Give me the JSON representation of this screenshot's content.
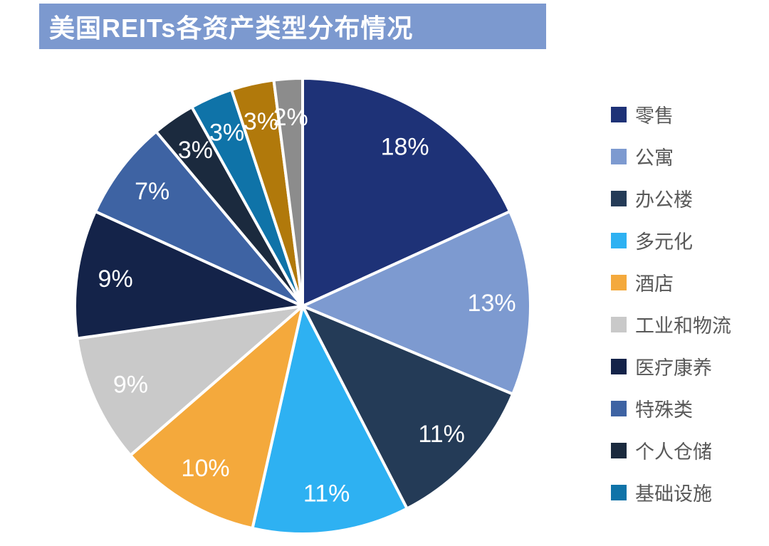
{
  "title": "美国REITs各资产类型分布情况",
  "title_banner_color": "#7C99CF",
  "legend_text_color": "#595959",
  "chart_data": {
    "type": "pie",
    "title": "美国REITs各资产类型分布情况",
    "legend_position": "right",
    "start_angle": "12-o-clock, clockwise",
    "slices": [
      {
        "label": "零售",
        "value": 18,
        "percent_label": "18%",
        "color": "#1E3277"
      },
      {
        "label": "公寓",
        "value": 13,
        "percent_label": "13%",
        "color": "#7D9AD0"
      },
      {
        "label": "办公楼",
        "value": 11,
        "percent_label": "11%",
        "color": "#243B57"
      },
      {
        "label": "多元化",
        "value": 11,
        "percent_label": "11%",
        "color": "#2EB1F2"
      },
      {
        "label": "酒店",
        "value": 10,
        "percent_label": "10%",
        "color": "#F4A93C"
      },
      {
        "label": "工业和物流",
        "value": 9,
        "percent_label": "9%",
        "color": "#C9C9C9"
      },
      {
        "label": "医疗康养",
        "value": 9,
        "percent_label": "9%",
        "color": "#142349"
      },
      {
        "label": "特殊类",
        "value": 7,
        "percent_label": "7%",
        "color": "#3E63A3"
      },
      {
        "label": "个人仓储",
        "value": 3,
        "percent_label": "3%",
        "color": "#1B2A3E"
      },
      {
        "label": "基础设施",
        "value": 3,
        "percent_label": "3%",
        "color": "#0F73A8"
      },
      {
        "label": "",
        "value": 3,
        "percent_label": "3%",
        "color": "#B1790B"
      },
      {
        "label": "",
        "value": 2,
        "percent_label": "2%",
        "color": "#8C8C8C"
      }
    ],
    "legend": [
      {
        "label": "零售",
        "color": "#1E3277"
      },
      {
        "label": "公寓",
        "color": "#7D9AD0"
      },
      {
        "label": "办公楼",
        "color": "#243B57"
      },
      {
        "label": "多元化",
        "color": "#2EB1F2"
      },
      {
        "label": "酒店",
        "color": "#F4A93C"
      },
      {
        "label": "工业和物流",
        "color": "#C9C9C9"
      },
      {
        "label": "医疗康养",
        "color": "#142349"
      },
      {
        "label": "特殊类",
        "color": "#3E63A3"
      },
      {
        "label": "个人仓储",
        "color": "#1B2A3E"
      },
      {
        "label": "基础设施",
        "color": "#0F73A8"
      }
    ]
  }
}
